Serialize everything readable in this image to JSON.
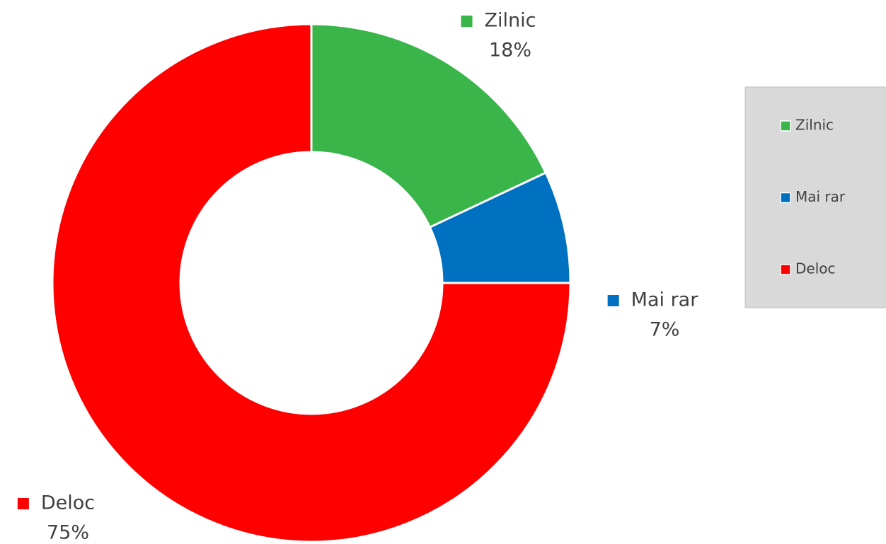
{
  "chart_data": {
    "type": "donut",
    "categories": [
      "Zilnic",
      "Mai rar",
      "Deloc"
    ],
    "values": [
      18,
      7,
      75
    ],
    "value_labels": [
      "18%",
      "7%",
      "75%"
    ],
    "colors": [
      "#39b54a",
      "#0070c0",
      "#ff0000"
    ],
    "legend": "right"
  }
}
